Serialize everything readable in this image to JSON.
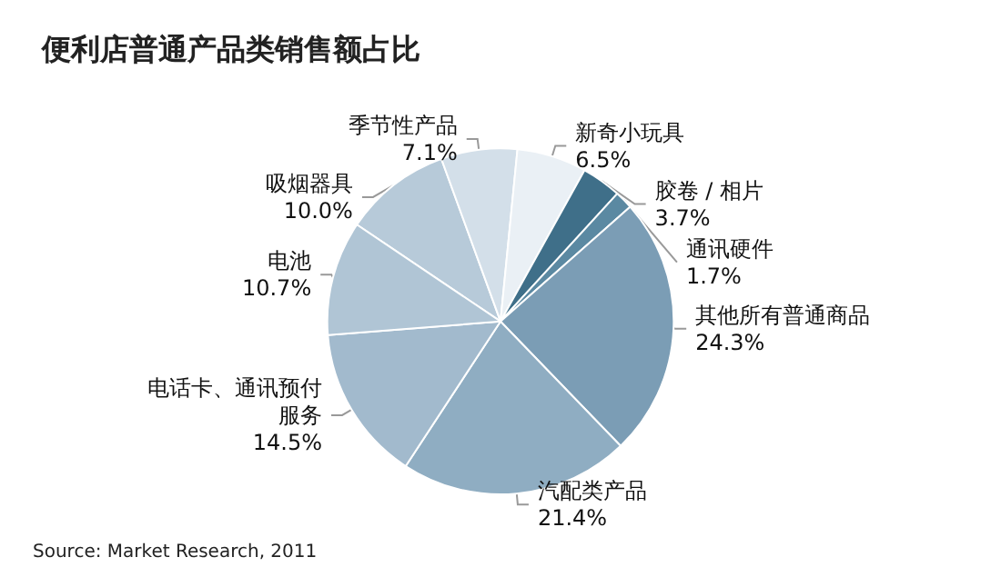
{
  "chart_data": {
    "type": "pie",
    "title": "便利店普通产品类销售额占比",
    "categories": [
      "吸烟器具",
      "季节性产品",
      "新奇小玩具",
      "胶卷 / 相片",
      "通讯硬件",
      "其他所有普通商品",
      "汽配类产品",
      "电话卡、通讯预付服务",
      "电池"
    ],
    "values": [
      10.0,
      7.1,
      6.5,
      3.7,
      1.7,
      24.3,
      21.4,
      14.5,
      10.7
    ],
    "value_labels": [
      "10.0%",
      "7.1%",
      "6.5%",
      "3.7%",
      "1.7%",
      "24.3%",
      "21.4%",
      "14.5%",
      "10.7%"
    ],
    "colors": [
      "#b7cad9",
      "#d3dfe9",
      "#eaf0f5",
      "#3f6f89",
      "#5b89a2",
      "#7b9db5",
      "#8fadc2",
      "#a2bacd",
      "#b0c5d5"
    ],
    "annotations": [
      "Source: Market Research, 2011"
    ]
  }
}
